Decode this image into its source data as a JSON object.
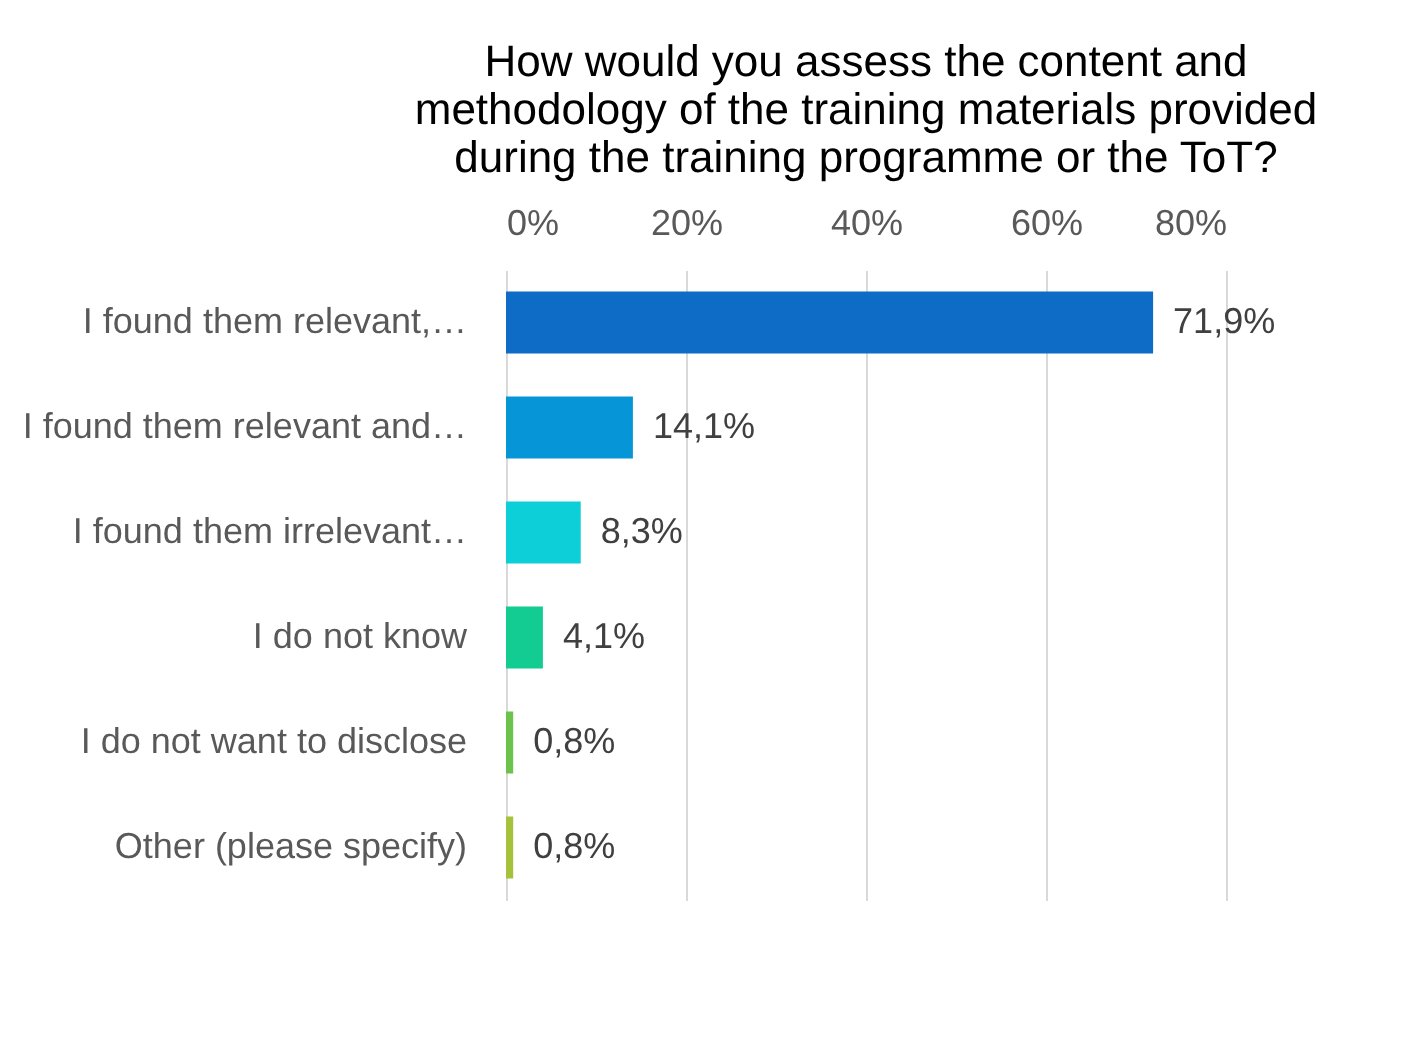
{
  "chart_data": {
    "type": "bar",
    "orientation": "horizontal",
    "title": "How would you assess the content and\nmethodology of the training materials provided\nduring the training programme or the ToT?",
    "categories": [
      "I found them relevant,…",
      "I found them relevant and…",
      "I found them irrelevant…",
      "I do not know",
      "I do not want to disclose",
      "Other (please specify)"
    ],
    "values": [
      71.9,
      14.1,
      8.3,
      4.1,
      0.8,
      0.8
    ],
    "value_labels": [
      "71,9%",
      "14,1%",
      "8,3%",
      "4,1%",
      "0,8%",
      "0,8%"
    ],
    "colors": [
      "#0f6cc6",
      "#0696d7",
      "#0ccfd8",
      "#12cc92",
      "#6cc24a",
      "#a6c13a"
    ],
    "xlim": [
      0,
      80
    ],
    "xticks": [
      {
        "value": 0,
        "label": "0%"
      },
      {
        "value": 20,
        "label": "20%"
      },
      {
        "value": 40,
        "label": "40%"
      },
      {
        "value": 60,
        "label": "60%"
      },
      {
        "value": 80,
        "label": "80%"
      }
    ],
    "grid": "x"
  }
}
